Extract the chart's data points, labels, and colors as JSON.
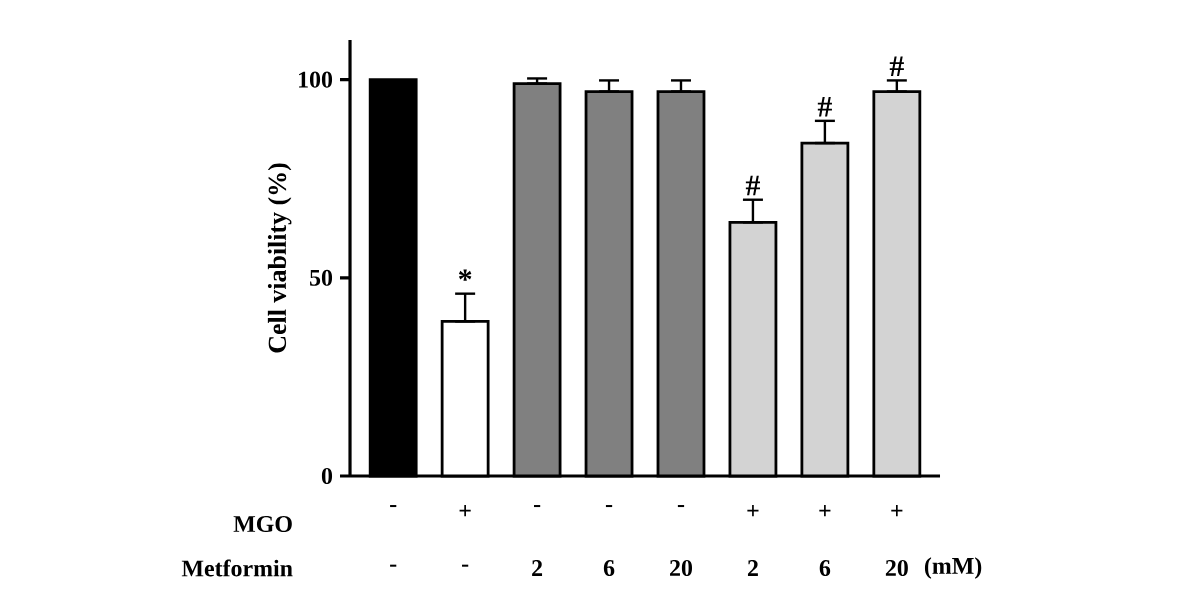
{
  "chart_data": {
    "type": "bar",
    "ylabel": "Cell viability (%)",
    "categories": [
      "-",
      "+",
      "-",
      "-",
      "-",
      "+",
      "+",
      "+"
    ],
    "values": [
      100,
      39,
      99,
      97,
      97,
      64,
      84,
      97
    ],
    "colors": [
      "#000000",
      "#ffffff",
      "#808080",
      "#808080",
      "#808080",
      "#d3d3d3",
      "#d3d3d3",
      "#d3d3d3"
    ],
    "errors": [
      null,
      [
        39,
        46
      ],
      [
        99,
        100.3
      ],
      [
        97,
        99.8
      ],
      [
        97,
        99.8
      ],
      [
        64,
        69.7
      ],
      [
        84,
        89.6
      ],
      [
        97,
        99.8
      ]
    ],
    "ylim": [
      0,
      110
    ],
    "yticks": [
      0,
      50,
      100
    ],
    "value_labels": [
      null,
      "*",
      null,
      null,
      null,
      "#",
      "#",
      "#"
    ],
    "annotations": [
      "MGO",
      "Metformin",
      "-",
      "-",
      "2",
      "6",
      "20",
      "2",
      "6",
      "20",
      "(mM)"
    ]
  }
}
